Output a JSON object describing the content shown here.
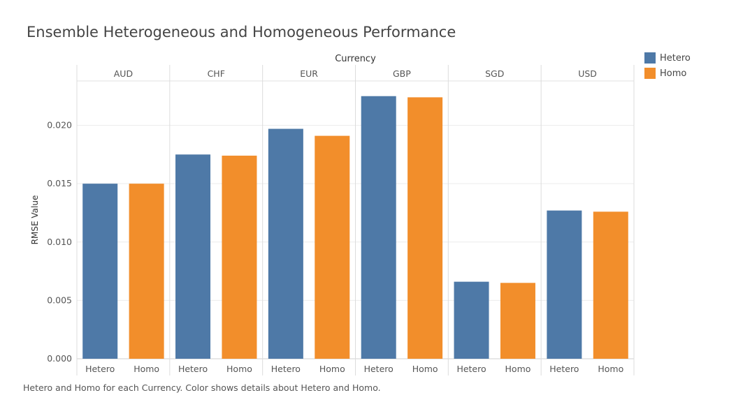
{
  "title": "Ensemble Heterogeneous and Homogeneous Performance",
  "caption": "Hetero and Homo for each Currency.  Color shows details about Hetero and Homo.",
  "legend": [
    {
      "label": "Hetero",
      "color": "#4e79a7"
    },
    {
      "label": "Homo",
      "color": "#f28e2b"
    }
  ],
  "chart_data": {
    "type": "bar",
    "column_header": "Currency",
    "ylabel": "RMSE Value",
    "ylim": [
      0,
      0.0238
    ],
    "yticks": [
      "0.000",
      "0.005",
      "0.010",
      "0.015",
      "0.020"
    ],
    "ytick_values": [
      0,
      0.005,
      0.01,
      0.015,
      0.02
    ],
    "grid": true,
    "legend_position": "top-right",
    "categories": [
      "AUD",
      "CHF",
      "EUR",
      "GBP",
      "SGD",
      "USD"
    ],
    "series": [
      {
        "name": "Hetero",
        "color": "#4e79a7",
        "values": [
          0.015,
          0.0175,
          0.0197,
          0.0225,
          0.0066,
          0.0127
        ]
      },
      {
        "name": "Homo",
        "color": "#f28e2b",
        "values": [
          0.015,
          0.0174,
          0.0191,
          0.0224,
          0.0065,
          0.0126
        ]
      }
    ]
  }
}
